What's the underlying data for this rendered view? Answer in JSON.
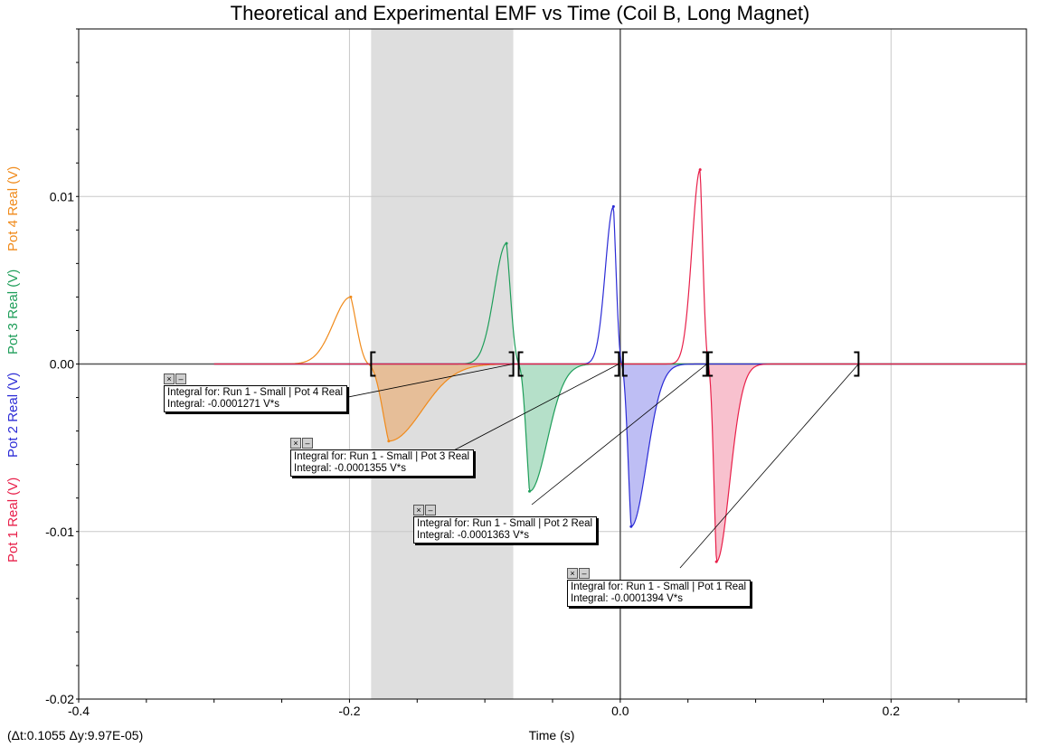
{
  "title": "Theoretical and Experimental EMF vs Time (Coil B, Long Magnet)",
  "x_axis_label": "Time (s)",
  "status_readout": "(Δt:0.1055 Δy:9.97E-05)",
  "y_axis_labels": [
    {
      "text": "Pot 1 Real (V)",
      "color": "#e8204a"
    },
    {
      "text": "Pot 2 Real (V)",
      "color": "#2b2bd6"
    },
    {
      "text": "Pot 3 Real (V)",
      "color": "#1f9e5a"
    },
    {
      "text": "Pot 4 Real (V)",
      "color": "#f08a1a"
    }
  ],
  "annotations": [
    {
      "line1": "Integral for: Run 1 - Small | Pot 4 Real",
      "line2": "Integral: -0.0001271 V*s"
    },
    {
      "line1": "Integral for: Run 1 - Small | Pot 3 Real",
      "line2": "Integral: -0.0001355 V*s"
    },
    {
      "line1": "Integral for: Run 1 - Small | Pot 2 Real",
      "line2": "Integral: -0.0001363 V*s"
    },
    {
      "line1": "Integral for: Run 1 - Small | Pot 1 Real",
      "line2": "Integral: -0.0001394 V*s"
    }
  ],
  "chart_data": {
    "type": "line",
    "title": "Theoretical and Experimental EMF vs Time (Coil B, Long Magnet)",
    "xlabel": "Time (s)",
    "xlim": [
      -0.4,
      0.3
    ],
    "ylim": [
      -0.02,
      0.02
    ],
    "x_ticks": [
      -0.4,
      -0.2,
      0.0,
      0.2
    ],
    "y_ticks": [
      -0.02,
      -0.01,
      0.0,
      0.01
    ],
    "x_tick_labels": [
      "-0.4",
      "-0.2",
      "0.0",
      "0.2"
    ],
    "y_tick_labels": [
      "-0.02",
      "-0.01",
      "0.00",
      "0.01"
    ],
    "grid": true,
    "selection_range": [
      -0.184,
      -0.079
    ],
    "series": [
      {
        "name": "Pot 4 Real",
        "unit": "V",
        "color": "#f08a1a",
        "fill": "#e8b98c",
        "peak": {
          "x": -0.199,
          "y": 0.004
        },
        "zero_cross": -0.186,
        "trough": {
          "x": -0.171,
          "y": -0.0046
        },
        "integral_range": [
          -0.184,
          -0.079
        ],
        "integral": -0.0001271
      },
      {
        "name": "Pot 3 Real",
        "unit": "V",
        "color": "#1f9e5a",
        "fill": "#a8dbbf",
        "peak": {
          "x": -0.084,
          "y": 0.0072
        },
        "zero_cross": -0.075,
        "trough": {
          "x": -0.067,
          "y": -0.0076
        },
        "integral_range": [
          -0.075,
          -0.001
        ],
        "integral": -0.0001355
      },
      {
        "name": "Pot 2 Real",
        "unit": "V",
        "color": "#2b2bd6",
        "fill": "#b3b3f2",
        "peak": {
          "x": -0.005,
          "y": 0.0094
        },
        "zero_cross": 0.001,
        "trough": {
          "x": 0.008,
          "y": -0.0097
        },
        "integral_range": [
          0.002,
          0.064
        ],
        "integral": -0.0001363
      },
      {
        "name": "Pot 1 Real",
        "unit": "V",
        "color": "#e8204a",
        "fill": "#f7b6c6",
        "peak": {
          "x": 0.059,
          "y": 0.0116
        },
        "zero_cross": 0.065,
        "trough": {
          "x": 0.071,
          "y": -0.0118
        },
        "integral_range": [
          0.065,
          0.176
        ],
        "integral": -0.0001394
      }
    ]
  }
}
